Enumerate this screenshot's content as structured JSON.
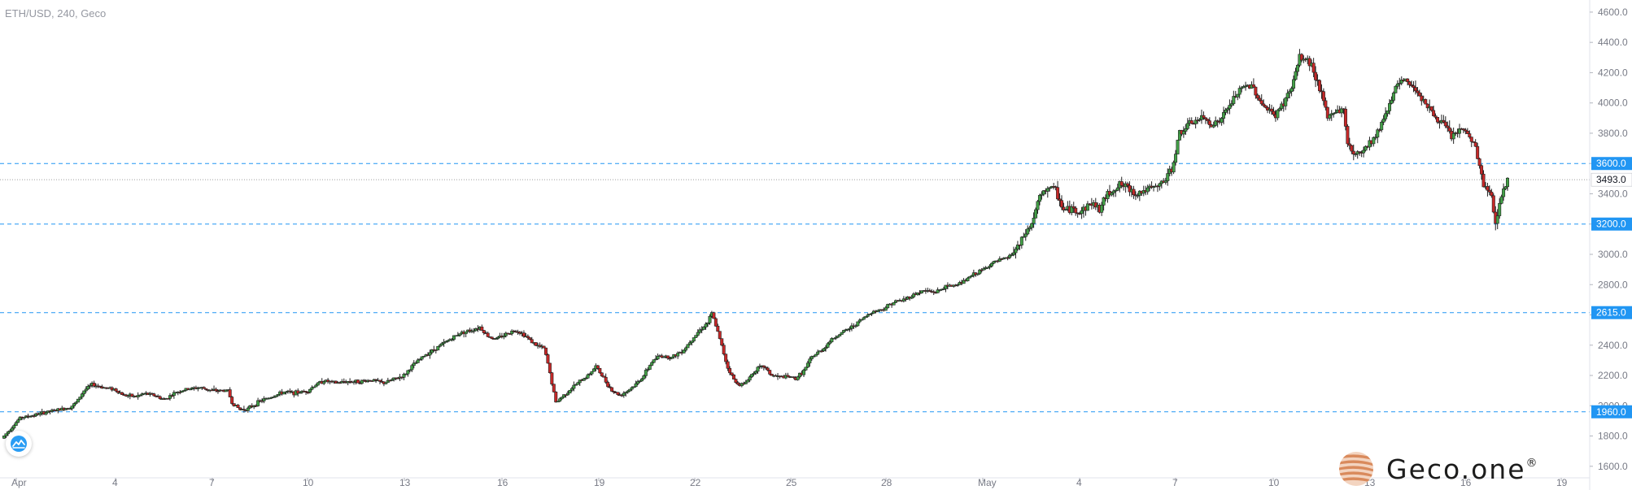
{
  "header": {
    "symbol_label": "ETH/USD, 240, Geco"
  },
  "brand": {
    "name": "Geco.one",
    "mark": "®"
  },
  "colors": {
    "up": "#26a69a",
    "up_fill": "#43a047",
    "down": "#c62828",
    "level_line": "#2196f3",
    "last_price_line": "#9e9e9e",
    "axis_text": "#787b86",
    "badge": "#2196f3"
  },
  "icons": {
    "tradingview_logo": "cloud-chart-icon",
    "brand_logo": "striped-sphere-icon"
  },
  "chart_data": {
    "type": "candlestick",
    "symbol": "ETH/USD",
    "timeframe": "240",
    "ylim": [
      1540,
      4680
    ],
    "y_ticks": [
      "1600.0",
      "1800.0",
      "2000.0",
      "2200.0",
      "2400.0",
      "2600.0",
      "2800.0",
      "3000.0",
      "3200.0",
      "3400.0",
      "3600.0",
      "3800.0",
      "4000.0",
      "4200.0",
      "4400.0",
      "4600.0"
    ],
    "x_ticks": [
      "Apr",
      "4",
      "7",
      "10",
      "13",
      "16",
      "19",
      "22",
      "25",
      "28",
      "May",
      "4",
      "7",
      "10",
      "13",
      "16",
      "19"
    ],
    "horizontal_levels": [
      {
        "value": 3600,
        "label": "3600.0"
      },
      {
        "value": 3200,
        "label": "3200.0"
      },
      {
        "value": 2615,
        "label": "2615.0"
      },
      {
        "value": 1960,
        "label": "1960.0"
      }
    ],
    "last_price": {
      "value": 3493,
      "label": "3493.0"
    },
    "grid": false,
    "series": [
      {
        "anchors": [
          [
            0,
            1800
          ],
          [
            8,
            1920
          ],
          [
            14,
            1935
          ],
          [
            22,
            1960
          ],
          [
            28,
            1975
          ],
          [
            33,
            1990
          ],
          [
            36,
            2020
          ],
          [
            40,
            2100
          ],
          [
            44,
            2140
          ],
          [
            50,
            2120
          ],
          [
            55,
            2110
          ],
          [
            60,
            2070
          ],
          [
            66,
            2060
          ],
          [
            70,
            2080
          ],
          [
            75,
            2070
          ],
          [
            80,
            2040
          ],
          [
            86,
            2090
          ],
          [
            92,
            2110
          ],
          [
            98,
            2120
          ],
          [
            104,
            2100
          ],
          [
            112,
            2100
          ],
          [
            114,
            2020
          ],
          [
            118,
            1975
          ],
          [
            122,
            1980
          ],
          [
            128,
            2030
          ],
          [
            134,
            2060
          ],
          [
            140,
            2090
          ],
          [
            146,
            2085
          ],
          [
            152,
            2100
          ],
          [
            156,
            2140
          ],
          [
            160,
            2165
          ],
          [
            166,
            2150
          ],
          [
            172,
            2160
          ],
          [
            178,
            2160
          ],
          [
            184,
            2170
          ],
          [
            190,
            2150
          ],
          [
            196,
            2180
          ],
          [
            200,
            2200
          ],
          [
            204,
            2260
          ],
          [
            210,
            2330
          ],
          [
            216,
            2380
          ],
          [
            222,
            2430
          ],
          [
            228,
            2480
          ],
          [
            234,
            2500
          ],
          [
            238,
            2520
          ],
          [
            242,
            2460
          ],
          [
            246,
            2440
          ],
          [
            252,
            2480
          ],
          [
            256,
            2500
          ],
          [
            260,
            2470
          ],
          [
            266,
            2400
          ],
          [
            270,
            2380
          ],
          [
            272,
            2280
          ],
          [
            276,
            2020
          ],
          [
            280,
            2070
          ],
          [
            286,
            2140
          ],
          [
            292,
            2200
          ],
          [
            296,
            2260
          ],
          [
            300,
            2180
          ],
          [
            304,
            2100
          ],
          [
            308,
            2070
          ],
          [
            312,
            2100
          ],
          [
            316,
            2140
          ],
          [
            320,
            2200
          ],
          [
            324,
            2290
          ],
          [
            328,
            2330
          ],
          [
            334,
            2320
          ],
          [
            340,
            2370
          ],
          [
            344,
            2440
          ],
          [
            348,
            2500
          ],
          [
            352,
            2550
          ],
          [
            354,
            2610
          ],
          [
            356,
            2530
          ],
          [
            358,
            2440
          ],
          [
            362,
            2250
          ],
          [
            366,
            2150
          ],
          [
            370,
            2140
          ],
          [
            376,
            2240
          ],
          [
            380,
            2260
          ],
          [
            384,
            2200
          ],
          [
            388,
            2190
          ],
          [
            392,
            2190
          ],
          [
            396,
            2180
          ],
          [
            400,
            2230
          ],
          [
            404,
            2320
          ],
          [
            410,
            2380
          ],
          [
            414,
            2440
          ],
          [
            420,
            2490
          ],
          [
            424,
            2520
          ],
          [
            430,
            2580
          ],
          [
            434,
            2620
          ],
          [
            440,
            2640
          ],
          [
            444,
            2680
          ],
          [
            450,
            2700
          ],
          [
            456,
            2740
          ],
          [
            460,
            2760
          ],
          [
            466,
            2750
          ],
          [
            470,
            2780
          ],
          [
            476,
            2800
          ],
          [
            480,
            2820
          ],
          [
            484,
            2860
          ],
          [
            490,
            2900
          ],
          [
            494,
            2940
          ],
          [
            498,
            2960
          ],
          [
            502,
            2980
          ],
          [
            504,
            3000
          ],
          [
            508,
            3060
          ],
          [
            510,
            3120
          ],
          [
            514,
            3200
          ],
          [
            518,
            3380
          ],
          [
            520,
            3400
          ],
          [
            522,
            3450
          ],
          [
            526,
            3420
          ],
          [
            530,
            3290
          ],
          [
            534,
            3300
          ],
          [
            538,
            3280
          ],
          [
            544,
            3340
          ],
          [
            548,
            3300
          ],
          [
            552,
            3400
          ],
          [
            558,
            3460
          ],
          [
            562,
            3440
          ],
          [
            566,
            3400
          ],
          [
            570,
            3420
          ],
          [
            576,
            3440
          ],
          [
            580,
            3480
          ],
          [
            584,
            3560
          ],
          [
            588,
            3800
          ],
          [
            594,
            3870
          ],
          [
            600,
            3900
          ],
          [
            604,
            3860
          ],
          [
            608,
            3880
          ],
          [
            612,
            3960
          ],
          [
            616,
            4050
          ],
          [
            620,
            4100
          ],
          [
            624,
            4120
          ],
          [
            628,
            4020
          ],
          [
            632,
            3950
          ],
          [
            636,
            3920
          ],
          [
            640,
            4000
          ],
          [
            644,
            4100
          ],
          [
            646,
            4200
          ],
          [
            648,
            4300
          ],
          [
            652,
            4280
          ],
          [
            654,
            4250
          ],
          [
            658,
            4100
          ],
          [
            662,
            3900
          ],
          [
            666,
            3950
          ],
          [
            670,
            3950
          ],
          [
            672,
            3740
          ],
          [
            676,
            3650
          ],
          [
            680,
            3700
          ],
          [
            686,
            3780
          ],
          [
            690,
            3900
          ],
          [
            694,
            4030
          ],
          [
            696,
            4100
          ],
          [
            700,
            4150
          ],
          [
            704,
            4120
          ],
          [
            708,
            4060
          ],
          [
            712,
            3980
          ],
          [
            716,
            3900
          ],
          [
            720,
            3860
          ],
          [
            724,
            3780
          ],
          [
            728,
            3820
          ],
          [
            732,
            3800
          ],
          [
            736,
            3700
          ],
          [
            740,
            3460
          ],
          [
            744,
            3380
          ],
          [
            746,
            3200
          ],
          [
            748,
            3350
          ],
          [
            752,
            3493
          ]
        ]
      }
    ]
  }
}
